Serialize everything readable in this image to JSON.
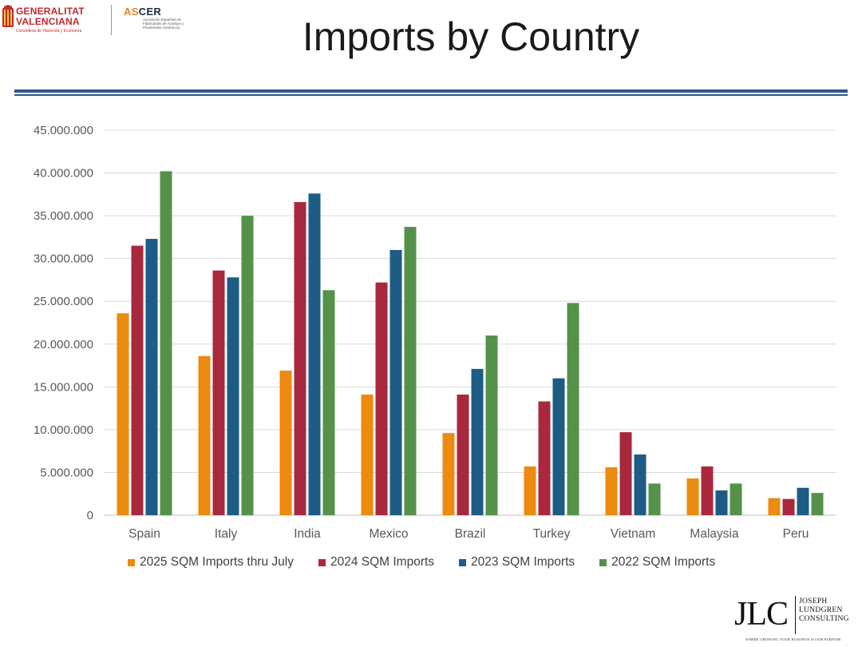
{
  "header": {
    "logo_left": {
      "line1": "GENERALITAT",
      "line2": "VALENCIANA",
      "line3": "Conselleria de Hacienda y Economía"
    },
    "logo_ascer": {
      "prefix": "AS",
      "suffix": "CER",
      "subtitle": "Asociación Española de Fabricantes de Azulejos y Pavimentos Cerámicos"
    },
    "title": "Imports by Country"
  },
  "footer": {
    "logo": {
      "letters": "JLC",
      "line1": "JOSEPH",
      "line2": "LUNDGREN",
      "line3": "CONSULTING",
      "tagline": "WHERE GROWING YOUR BUSINESS IS OUR PURPOSE"
    }
  },
  "colors": {
    "accent_rule": "#2a5a86",
    "gridline": "#d9d9d9"
  },
  "chart_data": {
    "type": "bar",
    "title": "",
    "xlabel": "",
    "ylabel": "",
    "categories": [
      "Spain",
      "Italy",
      "India",
      "Mexico",
      "Brazil",
      "Turkey",
      "Vietnam",
      "Malaysia",
      "Peru"
    ],
    "series": [
      {
        "name": "2025 SQM Imports thru July",
        "color": "#ed8a10",
        "values": [
          23600000,
          18600000,
          16900000,
          14100000,
          9600000,
          5700000,
          5600000,
          4300000,
          2000000
        ]
      },
      {
        "name": "2024 SQM Imports",
        "color": "#a8283e",
        "values": [
          31500000,
          28600000,
          36600000,
          27200000,
          14100000,
          13300000,
          9700000,
          5700000,
          1900000
        ]
      },
      {
        "name": "2023 SQM Imports",
        "color": "#1d5c85",
        "values": [
          32300000,
          27800000,
          37600000,
          31000000,
          17100000,
          16000000,
          7100000,
          2900000,
          3200000
        ]
      },
      {
        "name": "2022 SQM Imports",
        "color": "#54924a",
        "values": [
          40200000,
          35000000,
          26300000,
          33700000,
          21000000,
          24800000,
          3700000,
          3700000,
          2600000
        ]
      }
    ],
    "ylim": [
      0,
      45000000
    ],
    "yticks": [
      "0",
      "5.000.000",
      "10.000.000",
      "15.000.000",
      "20.000.000",
      "25.000.000",
      "30.000.000",
      "35.000.000",
      "40.000.000",
      "45.000.000"
    ],
    "grid": true,
    "legend_position": "bottom"
  }
}
